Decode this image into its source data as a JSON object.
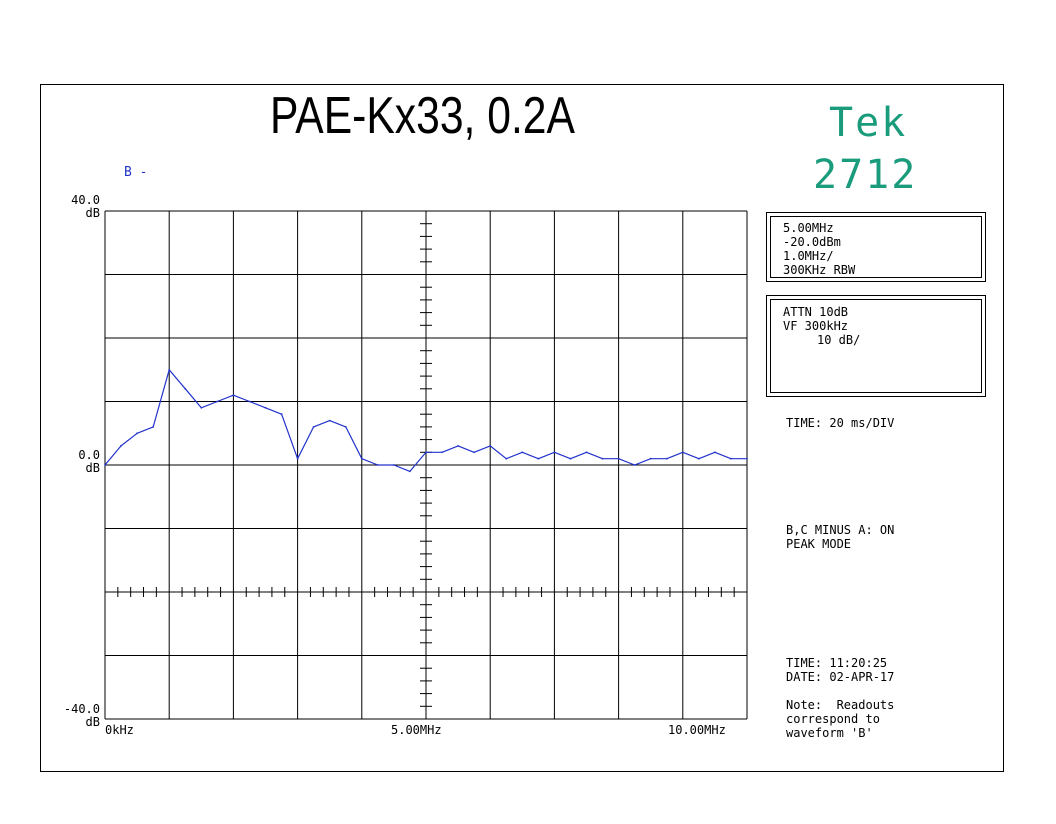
{
  "header": {
    "title": "PAE-Kx33, 0.2A",
    "brand": "Tek",
    "model": "2712",
    "trace_label": "B -"
  },
  "colors": {
    "trace": "#2233cc",
    "brand": "#1a9c7c",
    "grid": "#000000"
  },
  "settings_box": {
    "center_freq": "5.00MHz",
    "ref_level": "-20.0dBm",
    "span_div": "1.0MHz/",
    "rbw": "300KHz RBW"
  },
  "attn_box": {
    "attn": "ATTN 10dB",
    "vf": "VF 300kHz",
    "scale": "10 dB/"
  },
  "readouts": {
    "time_div": "TIME: 20 ms/DIV",
    "minus_mode": "B,C MINUS A: ON",
    "peak_mode": "PEAK MODE",
    "time": "TIME: 11:20:25",
    "date": "DATE: 02-APR-17",
    "note_line1": "Note:  Readouts",
    "note_line2": "correspond to",
    "note_line3": "waveform 'B'"
  },
  "chart_data": {
    "type": "line",
    "title": "PAE-Kx33, 0.2A",
    "xlabel": "",
    "ylabel": "",
    "x_tick_labels": [
      "0kHz",
      "5.00MHz",
      "10.00MHz"
    ],
    "y_tick_labels": {
      "top_value": "40.0",
      "top_unit": "dB",
      "mid_value": "0.0",
      "mid_unit": "dB",
      "bottom_value": "-40.0",
      "bottom_unit": "dB"
    },
    "xlim": [
      0,
      10
    ],
    "ylim": [
      -40,
      40
    ],
    "x_unit": "MHz",
    "y_unit": "dB",
    "grid": true,
    "grid_divisions": {
      "x": 10,
      "y": 8
    },
    "series": [
      {
        "x": [
          0,
          0.25,
          0.5,
          0.75,
          1.0,
          1.25,
          1.5,
          1.75,
          2.0,
          2.25,
          2.5,
          2.75,
          3.0,
          3.25,
          3.5,
          3.75,
          4.0,
          4.25,
          4.5,
          4.75,
          5.0,
          5.25,
          5.5,
          5.75,
          6.0,
          6.25,
          6.5,
          6.75,
          7.0,
          7.25,
          7.5,
          7.75,
          8.0,
          8.25,
          8.5,
          8.75,
          9.0,
          9.25,
          9.5,
          9.75,
          10.0
        ],
        "values": [
          0,
          3,
          5,
          6,
          15,
          12,
          9,
          10,
          11,
          10,
          9,
          8,
          1,
          6,
          7,
          6,
          1,
          0,
          0,
          -1,
          2,
          2,
          3,
          2,
          3,
          1,
          2,
          1,
          2,
          1,
          2,
          1,
          1,
          0,
          1,
          1,
          2,
          1,
          2,
          1,
          1
        ]
      }
    ]
  }
}
